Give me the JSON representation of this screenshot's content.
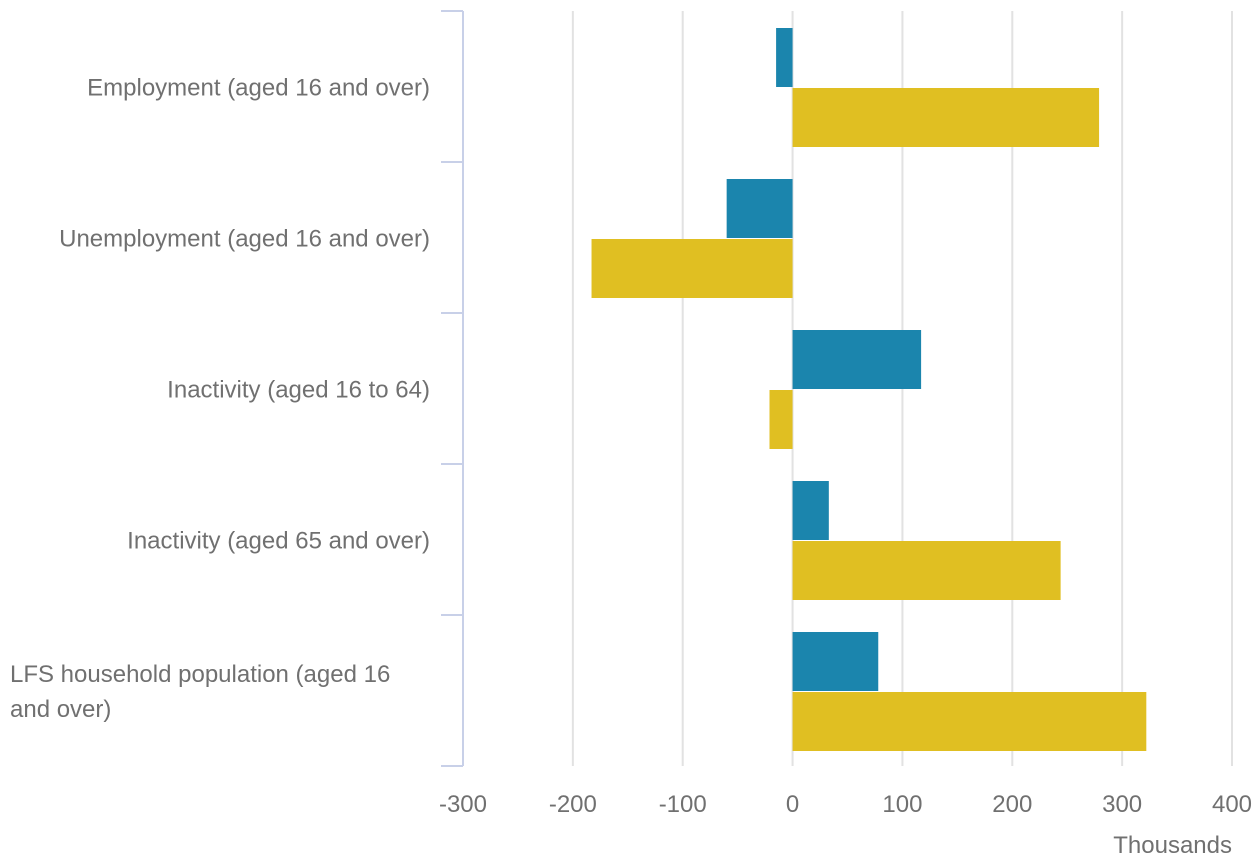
{
  "chart_data": {
    "type": "bar",
    "orientation": "horizontal",
    "categories": [
      "Employment (aged 16 and over)",
      "Unemployment (aged 16 and over)",
      "Inactivity (aged 16 to 64)",
      "Inactivity (aged 65 and over)",
      "LFS household population (aged 16 and over)"
    ],
    "series": [
      {
        "values": [
          -15,
          -60,
          117,
          33,
          78
        ],
        "color": "#1b85ad"
      },
      {
        "values": [
          279,
          -183,
          -21,
          244,
          322
        ],
        "color": "#e0bf22"
      }
    ],
    "xlim": [
      -300,
      400
    ],
    "xticks": [
      -300,
      -200,
      -100,
      0,
      100,
      200,
      300,
      400
    ],
    "xlabel": "Thousands",
    "ylabel": "",
    "title": "",
    "grid": true,
    "legend": "none"
  },
  "colors": {
    "grid": "#e2e2e2",
    "axis": "#c8d0e8",
    "text": "#707070"
  }
}
